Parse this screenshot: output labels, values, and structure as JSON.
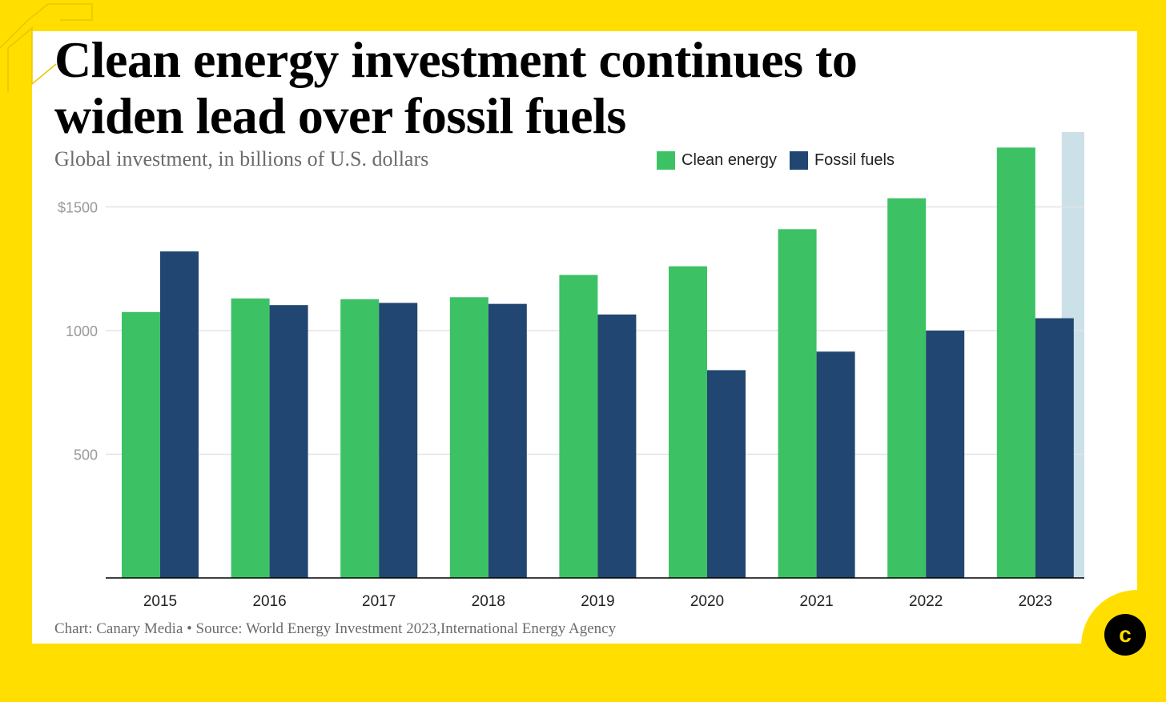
{
  "title": "Clean energy investment continues to\nwiden lead over fossil fuels",
  "subtitle": "Global investment, in billions of U.S. dollars",
  "footer": "Chart: Canary Media • Source: World Energy Investment 2023,International Energy Agency",
  "logo_letter": "c",
  "colors": {
    "background": "#FFDE00",
    "clean": "#3CC264",
    "fossil": "#214671",
    "highlight": "#CCE0E8",
    "grid": "#E3E3E3",
    "axis": "#000000"
  },
  "chart_data": {
    "type": "bar",
    "title": "Clean energy investment continues to widen lead over fossil fuels",
    "subtitle": "Global investment, in billions of U.S. dollars",
    "categories": [
      "2015",
      "2016",
      "2017",
      "2018",
      "2019",
      "2020",
      "2021",
      "2022",
      "2023"
    ],
    "series": [
      {
        "name": "Clean energy",
        "color": "#3CC264",
        "values": [
          1075,
          1130,
          1127,
          1135,
          1225,
          1260,
          1410,
          1535,
          1740
        ]
      },
      {
        "name": "Fossil fuels",
        "color": "#214671",
        "values": [
          1320,
          1103,
          1112,
          1108,
          1065,
          840,
          915,
          1000,
          1050
        ]
      }
    ],
    "ylim": [
      0,
      1800
    ],
    "yticks": [
      {
        "value": 500,
        "label": "500"
      },
      {
        "value": 1000,
        "label": "1000"
      },
      {
        "value": 1500,
        "label": "$1500"
      }
    ],
    "highlight_category": "2023",
    "legend_position": "top-right",
    "grid": true,
    "xlabel": "",
    "ylabel": ""
  }
}
